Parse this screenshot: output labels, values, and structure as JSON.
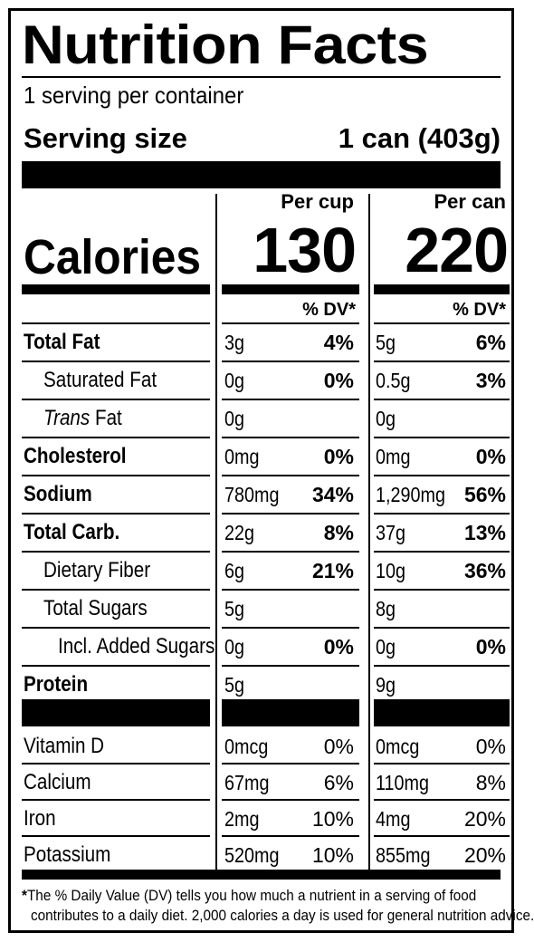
{
  "title": "Nutrition Facts",
  "servings_per_container": "1 serving per container",
  "serving_size_label": "Serving size",
  "serving_size_value": "1 can (403g)",
  "columns": [
    {
      "header": "Per cup",
      "calories": "130",
      "dv_header": "% DV*"
    },
    {
      "header": "Per can",
      "calories": "220",
      "dv_header": "% DV*"
    }
  ],
  "calories_label": "Calories",
  "nutrients": [
    {
      "name": "Total Fat",
      "bold": true,
      "indent": 0,
      "cup_amt": "3g",
      "cup_dv": "4%",
      "can_amt": "5g",
      "can_dv": "6%"
    },
    {
      "name": "Saturated Fat",
      "bold": false,
      "indent": 1,
      "cup_amt": "0g",
      "cup_dv": "0%",
      "can_amt": "0.5g",
      "can_dv": "3%"
    },
    {
      "name_italic": "Trans",
      "name": " Fat",
      "bold": false,
      "indent": 1,
      "cup_amt": "0g",
      "cup_dv": "",
      "can_amt": "0g",
      "can_dv": ""
    },
    {
      "name": "Cholesterol",
      "bold": true,
      "indent": 0,
      "cup_amt": "0mg",
      "cup_dv": "0%",
      "can_amt": "0mg",
      "can_dv": "0%"
    },
    {
      "name": "Sodium",
      "bold": true,
      "indent": 0,
      "cup_amt": "780mg",
      "cup_dv": "34%",
      "can_amt": "1,290mg",
      "can_dv": "56%"
    },
    {
      "name": "Total Carb.",
      "bold": true,
      "indent": 0,
      "cup_amt": "22g",
      "cup_dv": "8%",
      "can_amt": "37g",
      "can_dv": "13%"
    },
    {
      "name": "Dietary Fiber",
      "bold": false,
      "indent": 1,
      "cup_amt": "6g",
      "cup_dv": "21%",
      "can_amt": "10g",
      "can_dv": "36%"
    },
    {
      "name": "Total Sugars",
      "bold": false,
      "indent": 1,
      "cup_amt": "5g",
      "cup_dv": "",
      "can_amt": "8g",
      "can_dv": ""
    },
    {
      "name": "Incl. Added Sugars",
      "bold": false,
      "indent": 2,
      "cup_amt": "0g",
      "cup_dv": "0%",
      "can_amt": "0g",
      "can_dv": "0%"
    },
    {
      "name": "Protein",
      "bold": true,
      "indent": 0,
      "cup_amt": "5g",
      "cup_dv": "",
      "can_amt": "9g",
      "can_dv": ""
    }
  ],
  "vitamins": [
    {
      "name": "Vitamin D",
      "cup_amt": "0mcg",
      "cup_dv": "0%",
      "can_amt": "0mcg",
      "can_dv": "0%"
    },
    {
      "name": "Calcium",
      "cup_amt": "67mg",
      "cup_dv": "6%",
      "can_amt": "110mg",
      "can_dv": "8%"
    },
    {
      "name": "Iron",
      "cup_amt": "2mg",
      "cup_dv": "10%",
      "can_amt": "4mg",
      "can_dv": "20%"
    },
    {
      "name": "Potassium",
      "cup_amt": "520mg",
      "cup_dv": "10%",
      "can_amt": "855mg",
      "can_dv": "20%"
    }
  ],
  "footnote_line1": "The % Daily Value (DV) tells you how much a nutrient in a serving of food",
  "footnote_line2": "contributes to a daily diet. 2,000 calories a day is used for general nutrition advice.",
  "footnote_mark": "*"
}
